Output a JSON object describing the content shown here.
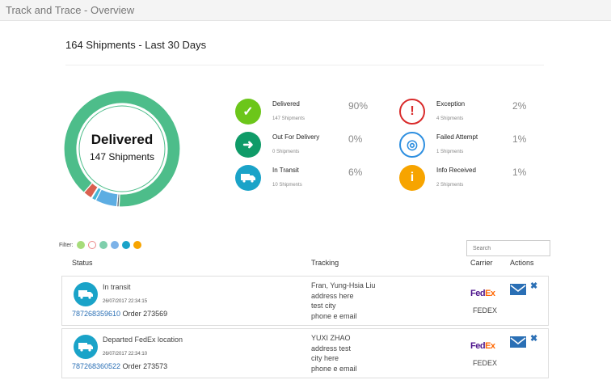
{
  "window": {
    "title": "Track and Trace - Overview"
  },
  "heading": "164 Shipments - Last 30 Days",
  "donut": {
    "title": "Delivered",
    "subtitle": "147 Shipments"
  },
  "chart_data": {
    "type": "pie",
    "style": "donut",
    "center_title": "Delivered",
    "center_subtitle": "147 Shipments",
    "slices": [
      {
        "label": "Delivered",
        "value": 147,
        "color": "#4dbd8a"
      },
      {
        "label": "Failed Attempt",
        "value": 1,
        "color": "#5e6b77"
      },
      {
        "label": "In Transit",
        "value": 10,
        "color": "#5dade2"
      },
      {
        "label": "Info Received",
        "value": 2,
        "color": "#45b6d6"
      },
      {
        "label": "Out For Delivery",
        "value": 0,
        "color": "#f0a14a"
      },
      {
        "label": "Exception",
        "value": 4,
        "color": "#d9604f"
      }
    ]
  },
  "stats": [
    {
      "label": "Delivered",
      "sub": "147 Shipments",
      "pct": "90%",
      "icon": "check-icon",
      "color": "#6cc61a"
    },
    {
      "label": "Out For Delivery",
      "sub": "0 Shipments",
      "pct": "0%",
      "icon": "out-for-delivery-icon",
      "color": "#0f9b68"
    },
    {
      "label": "In Transit",
      "sub": "10 Shipments",
      "pct": "6%",
      "icon": "truck-icon",
      "color": "#1aa3c8"
    },
    {
      "label": "Exception",
      "sub": "4 Shipments",
      "pct": "2%",
      "icon": "exclamation-icon",
      "color": "#d92b2b"
    },
    {
      "label": "Failed Attempt",
      "sub": "1 Shipments",
      "pct": "1%",
      "icon": "target-icon",
      "color": "#2e8fe0"
    },
    {
      "label": "Info Received",
      "sub": "2 Shipments",
      "pct": "1%",
      "icon": "info-icon",
      "color": "#f7a400"
    }
  ],
  "filter": {
    "label": "Filter:"
  },
  "search": {
    "placeholder": "Search"
  },
  "columns": {
    "status": "Status",
    "tracking": "Tracking",
    "carrier": "Carrier",
    "actions": "Actions"
  },
  "rows": [
    {
      "status": "In transit",
      "datetime": "26/07/2017 22:34:15",
      "tracking": "787268359610",
      "order": " Order 273569",
      "addr": [
        "Fran, Yung-Hsia Liu",
        "address here",
        "test city",
        "phone e email"
      ],
      "logo": "FedEx",
      "carrier": "FEDEX"
    },
    {
      "status": "Departed FedEx location",
      "datetime": "26/07/2017 22:34:10",
      "tracking": "787268360522",
      "order": " Order 273573",
      "addr": [
        "YUXI ZHAO",
        "address test",
        "city here",
        "phone e email"
      ],
      "logo": "FedEx",
      "carrier": "FEDEX"
    }
  ]
}
